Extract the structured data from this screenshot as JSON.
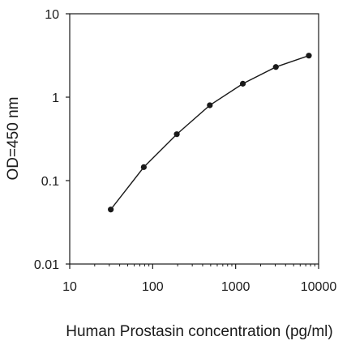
{
  "chart_data": {
    "type": "line",
    "xlabel": "Human Prostasin concentration (pg/ml)",
    "ylabel": "OD=450 nm",
    "x_scale": "log",
    "y_scale": "log",
    "xlim": [
      10,
      10000
    ],
    "ylim": [
      0.01,
      10
    ],
    "x_ticks": [
      "10",
      "100",
      "1000",
      "10000"
    ],
    "y_ticks": [
      "0.01",
      "0.1",
      "1",
      "10"
    ],
    "grid": false,
    "legend": "none",
    "series": [
      {
        "x": [
          31.25,
          78.125,
          195.3,
          488.3,
          1220.7,
          3051.8,
          7629.4
        ],
        "y": [
          0.045,
          0.145,
          0.36,
          0.8,
          1.45,
          2.3,
          3.15
        ],
        "color": "#1a1a1a"
      }
    ]
  }
}
